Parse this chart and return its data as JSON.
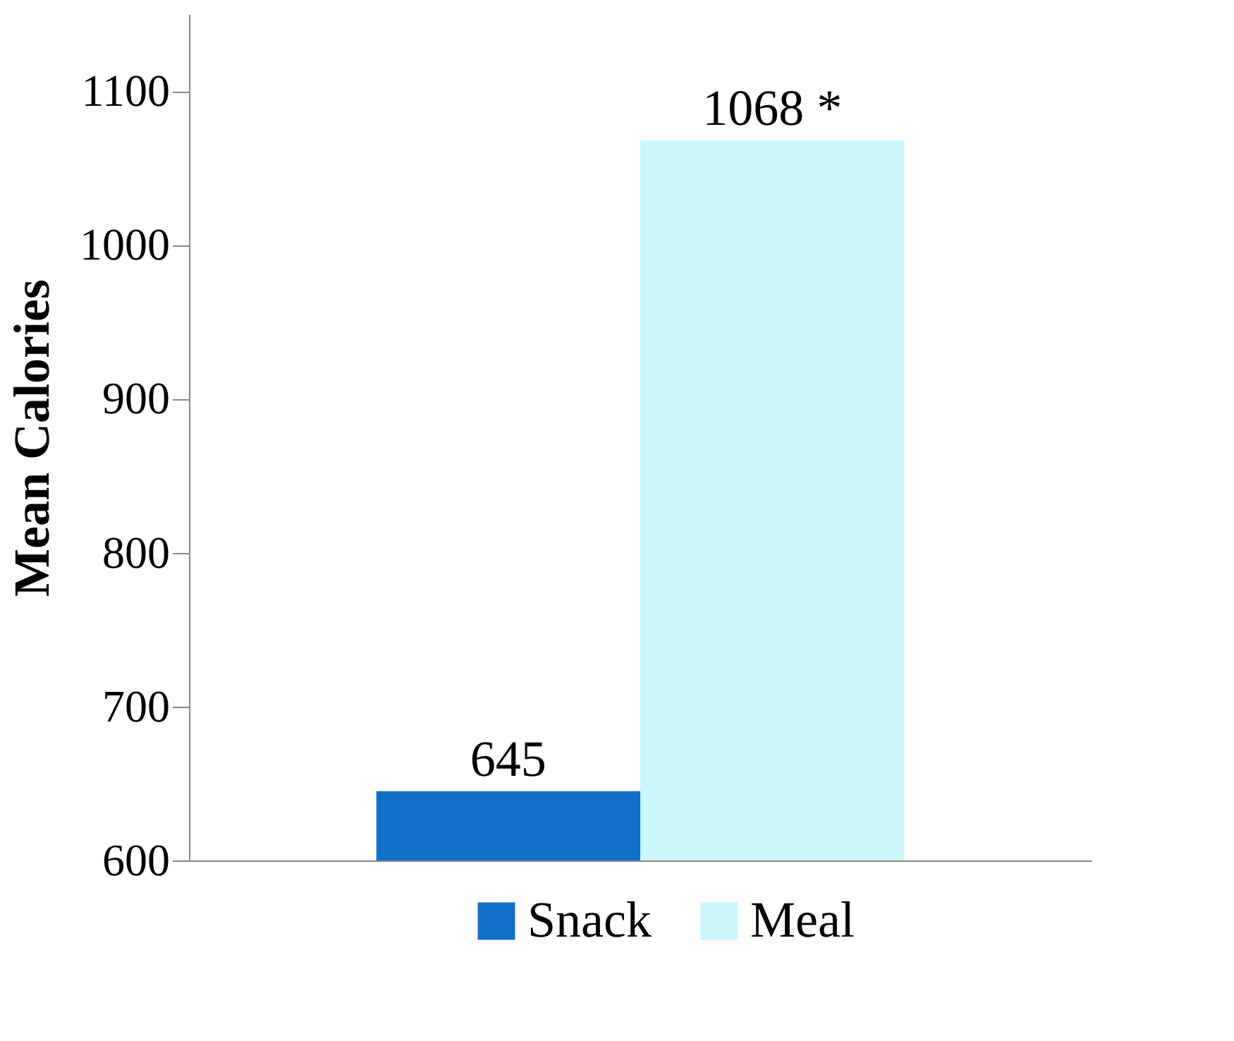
{
  "chart_data": {
    "type": "bar",
    "ylabel": "Mean Calories",
    "categories": [
      null
    ],
    "series": [
      {
        "name": "Snack",
        "color": "#1170c9",
        "values": [
          645
        ],
        "value_labels": [
          "645"
        ]
      },
      {
        "name": "Meal",
        "color": "#c9f7fb",
        "values": [
          1068
        ],
        "value_labels": [
          "1068 *"
        ]
      }
    ],
    "ylim": [
      600,
      1150
    ],
    "yticks": [
      600,
      700,
      800,
      900,
      1000,
      1100
    ],
    "grid": false,
    "legend": "bottom"
  }
}
